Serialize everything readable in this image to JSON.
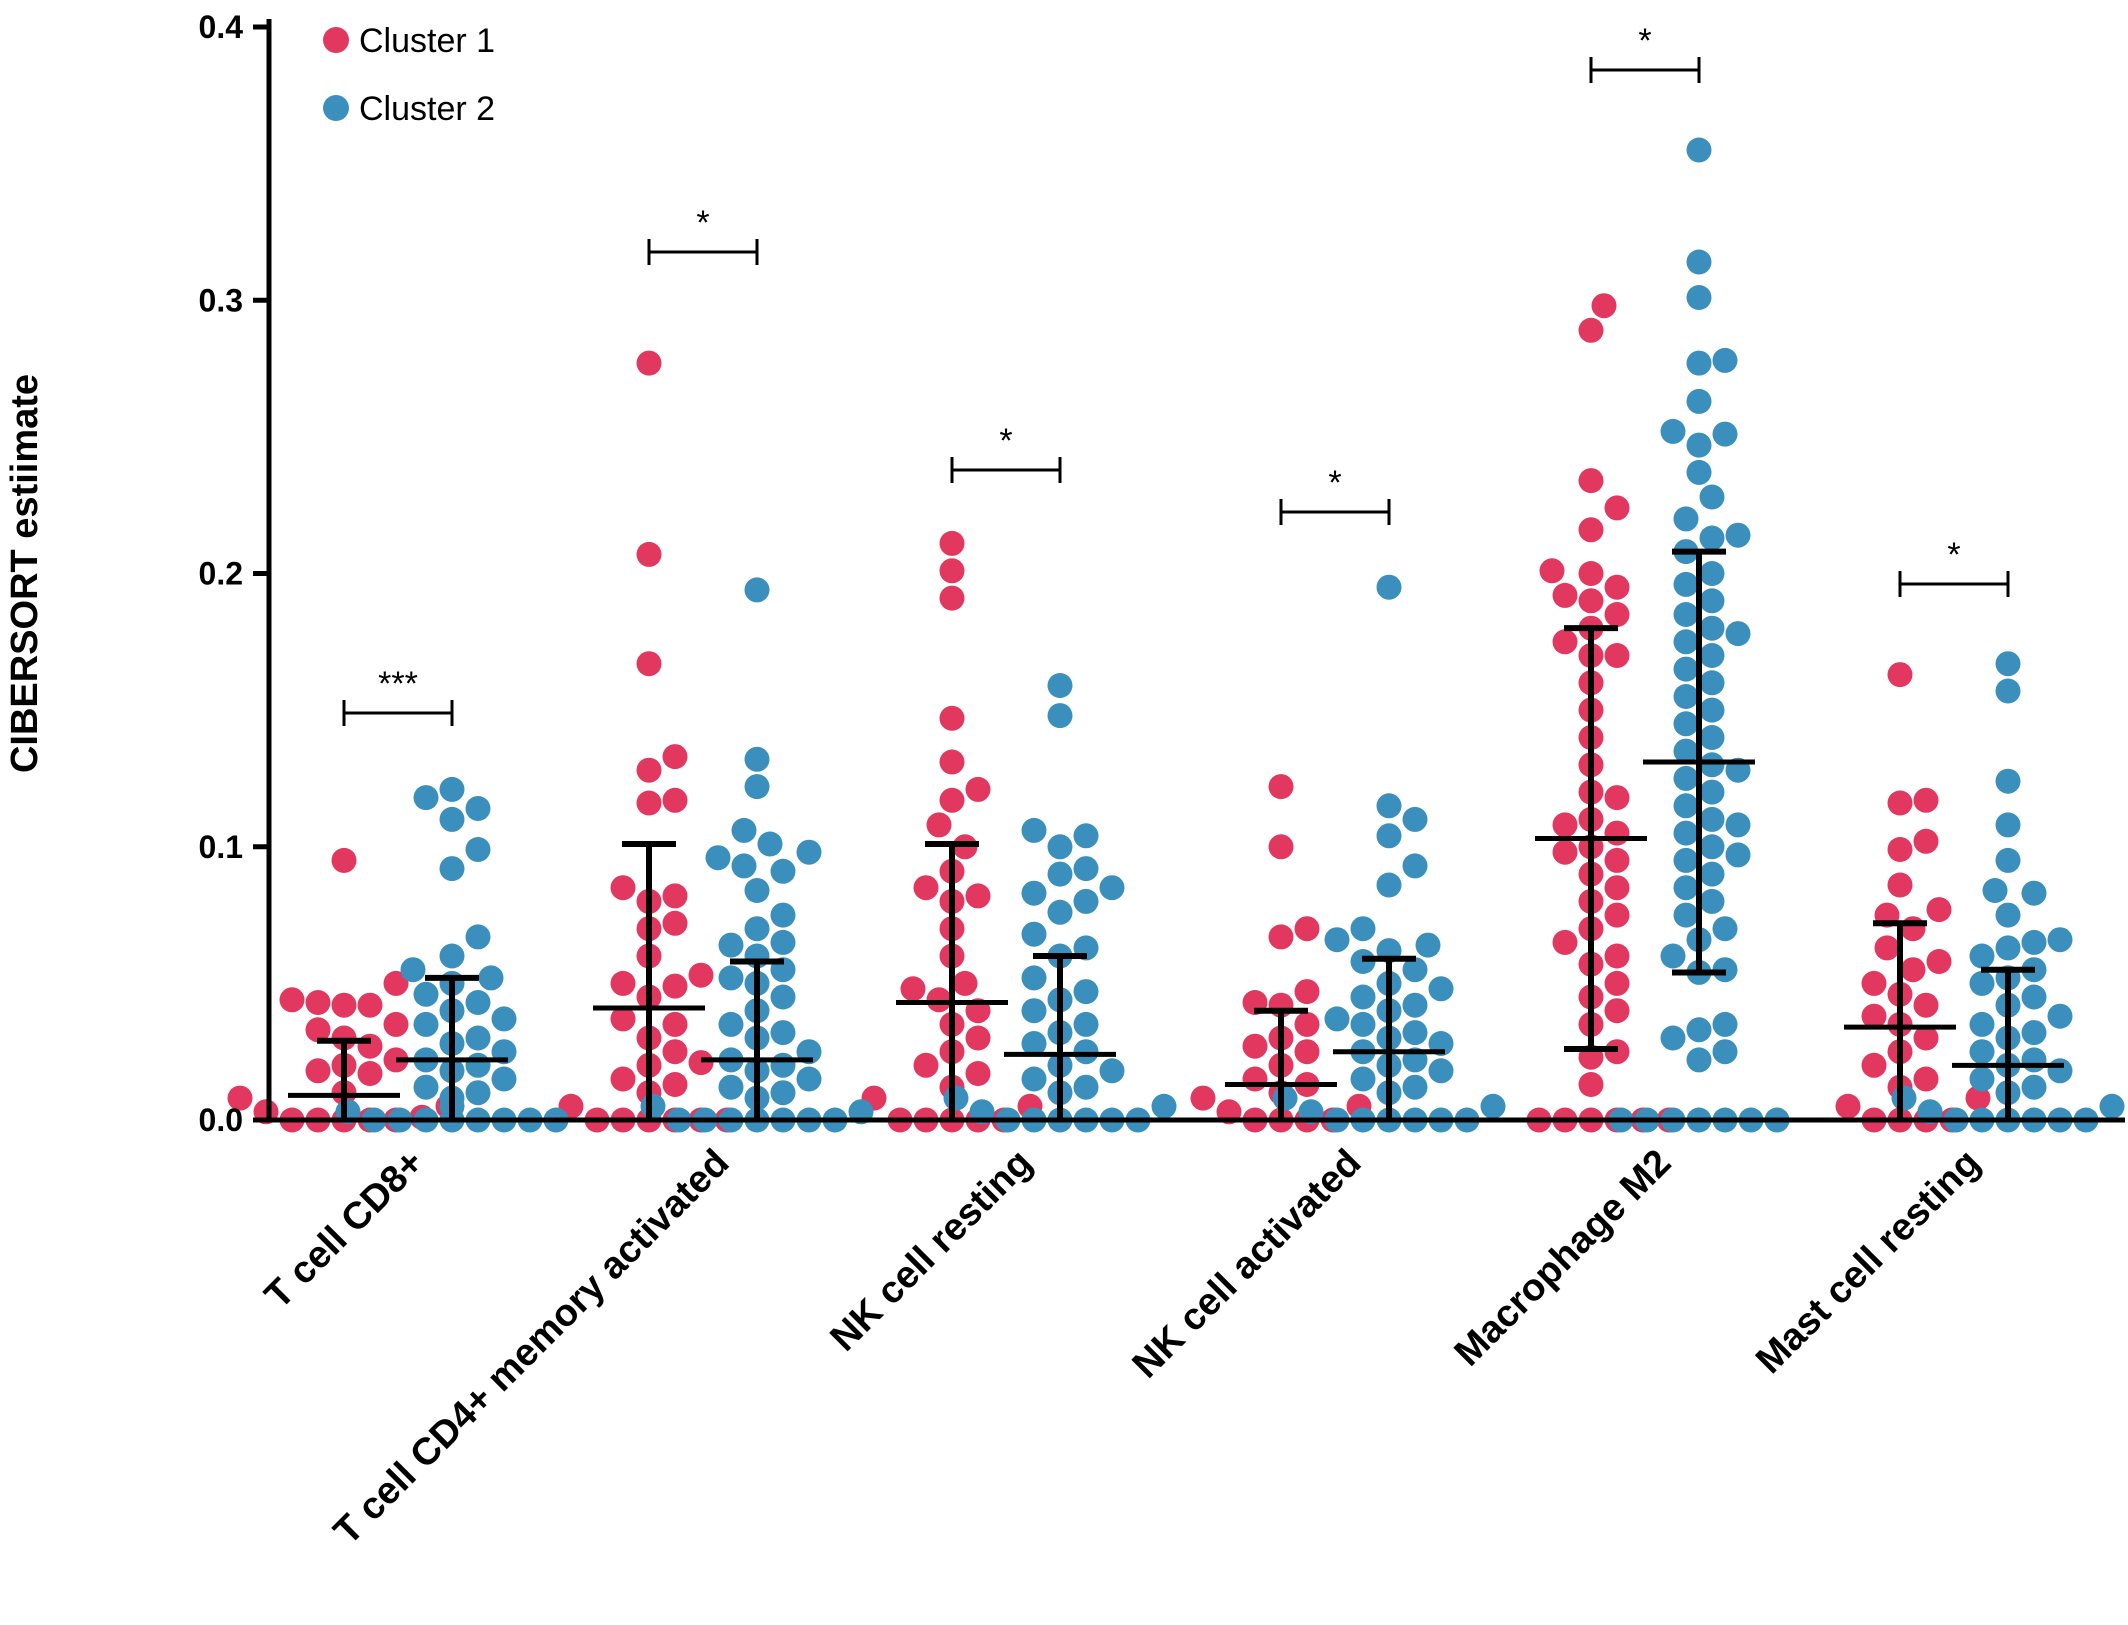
{
  "chart_data": {
    "type": "scatter",
    "title": "",
    "xlabel": "",
    "ylabel": "CIBERSORT estiimate",
    "ylim": [
      0,
      0.4
    ],
    "yticks": [
      "0.0",
      "0.1",
      "0.2",
      "0.3",
      "0.4"
    ],
    "legend_position": "top-left",
    "categories": [
      "T cell CD8+",
      "T cell CD4+ memory activated",
      "NK cell resting",
      "NK cell activated",
      "Macrophage M2",
      "Mast cell resting"
    ],
    "significance": [
      "***",
      "*",
      "*",
      "*",
      "*",
      "*"
    ],
    "series": [
      {
        "name": "Cluster 1",
        "color": "#e2375f",
        "median": [
          0.009,
          0.041,
          0.043,
          0.013,
          0.103,
          0.034
        ],
        "error_upper": [
          0.029,
          0.101,
          0.101,
          0.04,
          0.18,
          0.072
        ],
        "error_lower": [
          0.0,
          0.0,
          0.0,
          0.0,
          0.026,
          0.0
        ],
        "points": [
          [
            0.095,
            0.05,
            0.044,
            0.042,
            0.043,
            0.042,
            0.033,
            0.035,
            0.03,
            0.027,
            0.022,
            0.02,
            0.018,
            0.017,
            0.01,
            0.008,
            0.005,
            0.003,
            0.001,
            0.0,
            0.0,
            0.0,
            0.0,
            0.0
          ],
          [
            0.277,
            0.207,
            0.167,
            0.133,
            0.128,
            0.117,
            0.116,
            0.085,
            0.082,
            0.08,
            0.072,
            0.07,
            0.06,
            0.053,
            0.05,
            0.049,
            0.045,
            0.037,
            0.035,
            0.03,
            0.025,
            0.021,
            0.02,
            0.015,
            0.013,
            0.01,
            0.005,
            0.0,
            0.0,
            0.0,
            0.0,
            0.0,
            0.0
          ],
          [
            0.211,
            0.201,
            0.191,
            0.147,
            0.131,
            0.121,
            0.117,
            0.108,
            0.1,
            0.091,
            0.085,
            0.082,
            0.08,
            0.07,
            0.06,
            0.05,
            0.048,
            0.044,
            0.04,
            0.035,
            0.03,
            0.025,
            0.02,
            0.017,
            0.012,
            0.008,
            0.005,
            0.0,
            0.0,
            0.0,
            0.0,
            0.0
          ],
          [
            0.122,
            0.1,
            0.07,
            0.067,
            0.047,
            0.043,
            0.042,
            0.035,
            0.03,
            0.027,
            0.025,
            0.02,
            0.015,
            0.013,
            0.01,
            0.008,
            0.005,
            0.003,
            0.0,
            0.0,
            0.0,
            0.0
          ],
          [
            0.298,
            0.289,
            0.234,
            0.224,
            0.216,
            0.201,
            0.2,
            0.195,
            0.192,
            0.19,
            0.185,
            0.18,
            0.175,
            0.17,
            0.17,
            0.16,
            0.15,
            0.14,
            0.13,
            0.12,
            0.118,
            0.11,
            0.108,
            0.105,
            0.1,
            0.098,
            0.095,
            0.09,
            0.085,
            0.08,
            0.075,
            0.07,
            0.065,
            0.06,
            0.057,
            0.05,
            0.045,
            0.04,
            0.035,
            0.025,
            0.023,
            0.013,
            0.0,
            0.0,
            0.0,
            0.0,
            0.0,
            0.0
          ],
          [
            0.163,
            0.117,
            0.116,
            0.102,
            0.099,
            0.086,
            0.077,
            0.075,
            0.07,
            0.063,
            0.058,
            0.055,
            0.05,
            0.046,
            0.042,
            0.038,
            0.035,
            0.03,
            0.025,
            0.02,
            0.015,
            0.012,
            0.008,
            0.005,
            0.0,
            0.0,
            0.0,
            0.0
          ]
        ]
      },
      {
        "name": "Cluster 2",
        "color": "#3b8fbd",
        "median": [
          0.022,
          0.022,
          0.024,
          0.025,
          0.131,
          0.02
        ],
        "error_upper": [
          0.052,
          0.058,
          0.06,
          0.059,
          0.208,
          0.055
        ],
        "error_lower": [
          0.0,
          0.0,
          0.0,
          0.0,
          0.054,
          0.0
        ],
        "points": [
          [
            0.121,
            0.118,
            0.114,
            0.11,
            0.099,
            0.092,
            0.067,
            0.06,
            0.055,
            0.052,
            0.05,
            0.046,
            0.043,
            0.04,
            0.037,
            0.035,
            0.03,
            0.028,
            0.025,
            0.022,
            0.02,
            0.018,
            0.015,
            0.012,
            0.01,
            0.008,
            0.005,
            0.003,
            0.0,
            0.0,
            0.0,
            0.0,
            0.0,
            0.0,
            0.0,
            0.0
          ],
          [
            0.194,
            0.132,
            0.122,
            0.106,
            0.101,
            0.098,
            0.096,
            0.093,
            0.091,
            0.084,
            0.075,
            0.07,
            0.065,
            0.064,
            0.06,
            0.055,
            0.052,
            0.05,
            0.045,
            0.04,
            0.035,
            0.032,
            0.03,
            0.025,
            0.022,
            0.02,
            0.018,
            0.015,
            0.012,
            0.01,
            0.008,
            0.005,
            0.003,
            0.0,
            0.0,
            0.0,
            0.0,
            0.0,
            0.0,
            0.0
          ],
          [
            0.159,
            0.148,
            0.106,
            0.104,
            0.1,
            0.092,
            0.09,
            0.085,
            0.083,
            0.08,
            0.076,
            0.068,
            0.063,
            0.06,
            0.052,
            0.047,
            0.044,
            0.04,
            0.035,
            0.032,
            0.028,
            0.025,
            0.02,
            0.018,
            0.015,
            0.012,
            0.01,
            0.008,
            0.005,
            0.003,
            0.0,
            0.0,
            0.0,
            0.0,
            0.0,
            0.0
          ],
          [
            0.195,
            0.115,
            0.11,
            0.104,
            0.093,
            0.086,
            0.07,
            0.066,
            0.064,
            0.062,
            0.058,
            0.055,
            0.05,
            0.048,
            0.045,
            0.042,
            0.04,
            0.037,
            0.035,
            0.032,
            0.03,
            0.028,
            0.025,
            0.022,
            0.02,
            0.018,
            0.015,
            0.012,
            0.01,
            0.008,
            0.005,
            0.003,
            0.0,
            0.0,
            0.0,
            0.0,
            0.0,
            0.0
          ],
          [
            0.355,
            0.314,
            0.301,
            0.278,
            0.277,
            0.263,
            0.252,
            0.251,
            0.247,
            0.237,
            0.228,
            0.22,
            0.214,
            0.213,
            0.208,
            0.2,
            0.196,
            0.19,
            0.185,
            0.18,
            0.178,
            0.175,
            0.17,
            0.165,
            0.16,
            0.155,
            0.15,
            0.145,
            0.14,
            0.135,
            0.13,
            0.128,
            0.125,
            0.12,
            0.115,
            0.11,
            0.108,
            0.105,
            0.1,
            0.097,
            0.095,
            0.09,
            0.085,
            0.08,
            0.075,
            0.07,
            0.066,
            0.06,
            0.055,
            0.054,
            0.035,
            0.033,
            0.03,
            0.025,
            0.022,
            0.0,
            0.0,
            0.0,
            0.0,
            0.0,
            0.0,
            0.0
          ],
          [
            0.167,
            0.157,
            0.124,
            0.108,
            0.095,
            0.084,
            0.083,
            0.075,
            0.066,
            0.065,
            0.063,
            0.06,
            0.055,
            0.052,
            0.05,
            0.045,
            0.042,
            0.038,
            0.035,
            0.032,
            0.03,
            0.025,
            0.022,
            0.02,
            0.018,
            0.015,
            0.012,
            0.01,
            0.008,
            0.005,
            0.003,
            0.0,
            0.0,
            0.0,
            0.0,
            0.0,
            0.0
          ]
        ]
      }
    ]
  }
}
